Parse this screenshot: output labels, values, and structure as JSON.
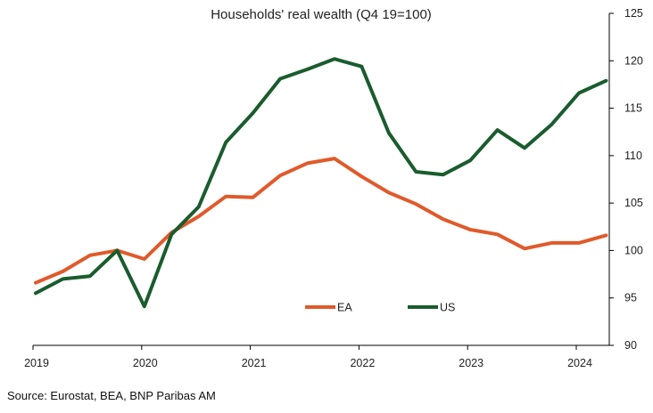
{
  "colors": {
    "EA": "#E05A2B",
    "US": "#1A5C2E",
    "axis": "#000000"
  },
  "chart_data": {
    "type": "line",
    "title": "Households' real wealth (Q4 19=100)",
    "xlabel": "",
    "ylabel": "",
    "x": [
      "2019Q1",
      "2019Q2",
      "2019Q3",
      "2019Q4",
      "2020Q1",
      "2020Q2",
      "2020Q3",
      "2020Q4",
      "2021Q1",
      "2021Q2",
      "2021Q3",
      "2021Q4",
      "2022Q1",
      "2022Q2",
      "2022Q3",
      "2022Q4",
      "2023Q1",
      "2023Q2",
      "2023Q3",
      "2023Q4",
      "2024Q1",
      "2024Q2"
    ],
    "x_tick_labels": [
      "2019",
      "2020",
      "2021",
      "2022",
      "2023",
      "2024"
    ],
    "ylim": [
      90,
      125
    ],
    "y_ticks": [
      "90",
      "95",
      "100",
      "105",
      "110",
      "115",
      "120",
      "125"
    ],
    "y_axis_side": "right",
    "grid": false,
    "legend_position": "inside bottom center",
    "series": [
      {
        "name": "EA",
        "color": "#E05A2B",
        "values": [
          96.6,
          97.8,
          99.5,
          100.0,
          99.1,
          101.9,
          103.6,
          105.7,
          105.6,
          107.9,
          109.2,
          109.7,
          107.8,
          106.1,
          104.9,
          103.3,
          102.2,
          101.7,
          100.2,
          100.8,
          100.8,
          101.6
        ]
      },
      {
        "name": "US",
        "color": "#1A5C2E",
        "values": [
          95.5,
          97.0,
          97.3,
          100.0,
          94.1,
          101.7,
          104.6,
          111.4,
          114.5,
          118.1,
          119.1,
          120.2,
          119.4,
          112.4,
          108.3,
          108.0,
          109.5,
          112.7,
          110.8,
          113.3,
          116.6,
          117.9
        ]
      }
    ]
  },
  "source": "Source: Eurostat, BEA, BNP Paribas AM"
}
